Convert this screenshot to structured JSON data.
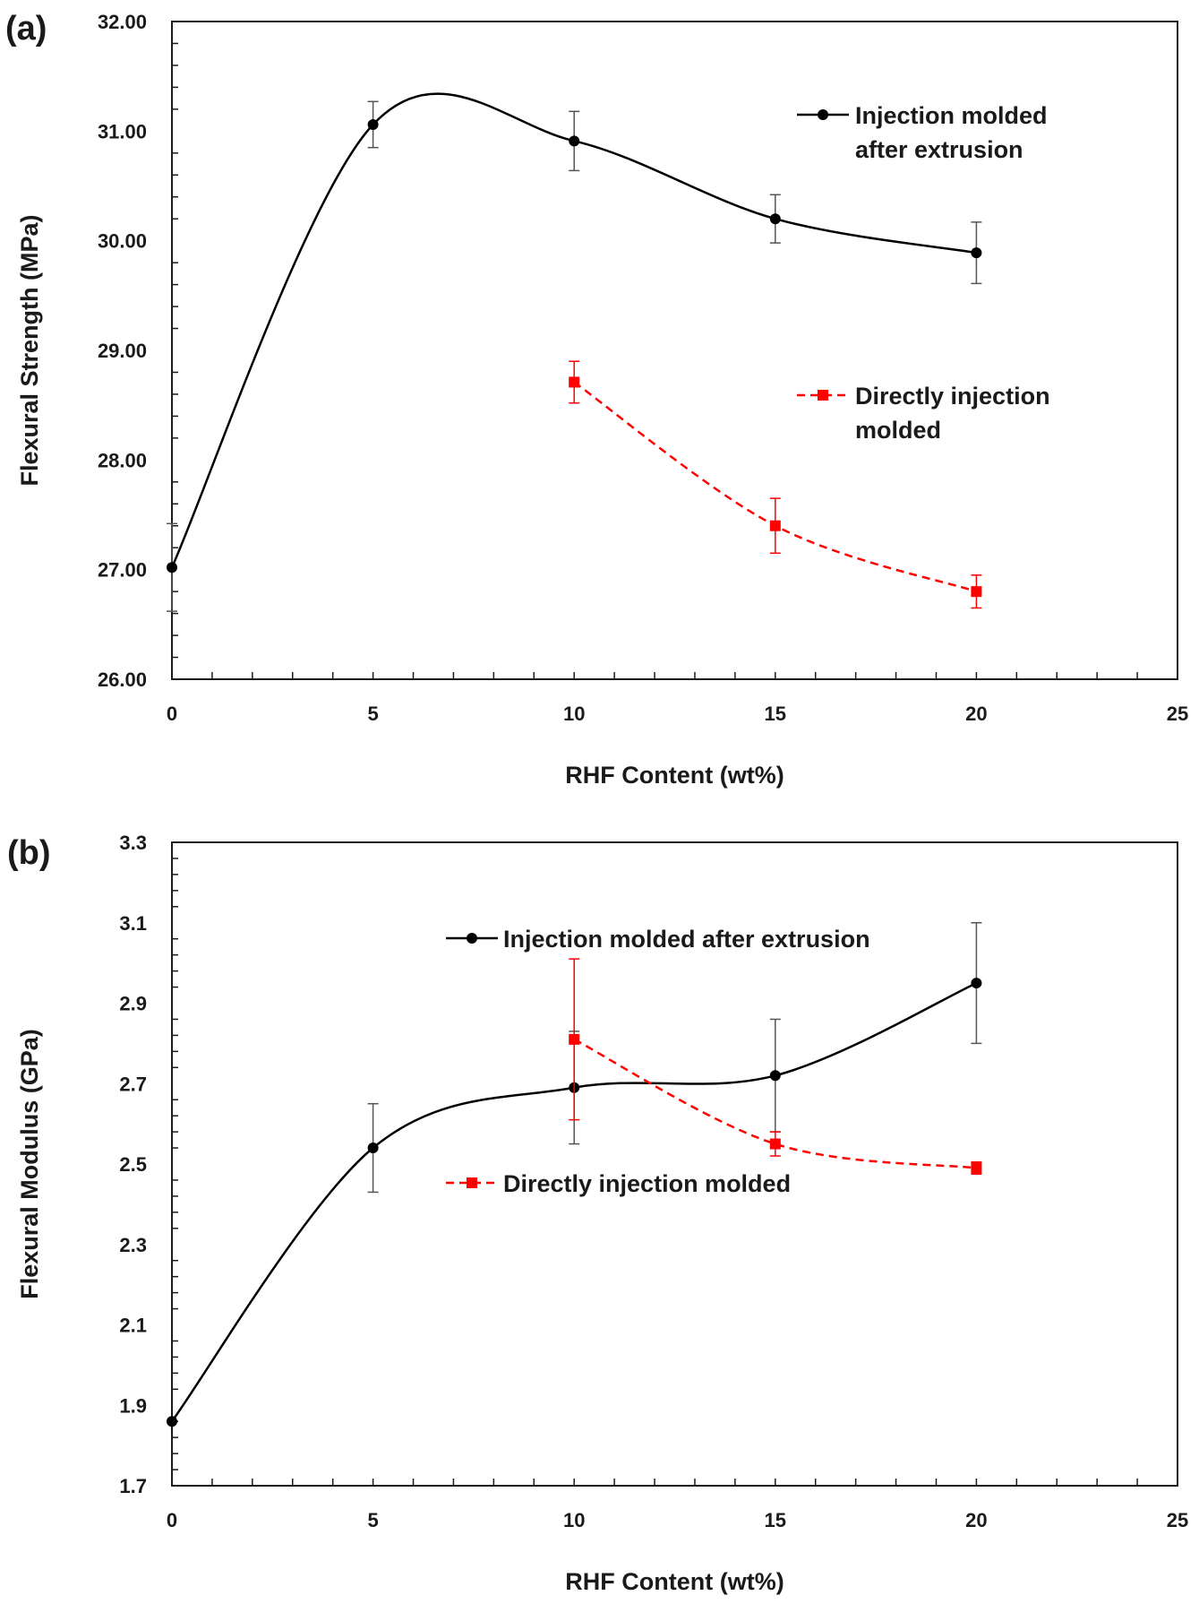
{
  "chart_data": [
    {
      "type": "line",
      "panel_label": "(a)",
      "xlabel": "RHF Content (wt%)",
      "ylabel": "Flexural Strength (MPa)",
      "xlim": [
        0,
        25
      ],
      "ylim": [
        26,
        32
      ],
      "xticks": [
        "0",
        "5",
        "10",
        "15",
        "20",
        "25"
      ],
      "yticks": [
        "26.00",
        "27.00",
        "28.00",
        "29.00",
        "30.00",
        "31.00",
        "32.00"
      ],
      "grid": false,
      "series": [
        {
          "name_lines": [
            "Injection molded",
            "after extrusion"
          ],
          "color": "#000000",
          "marker": "circle",
          "dash": "solid",
          "x": [
            0,
            5,
            10,
            15,
            20
          ],
          "y": [
            27.02,
            31.06,
            30.91,
            30.2,
            29.89
          ],
          "err": [
            0.4,
            0.21,
            0.27,
            0.22,
            0.28
          ]
        },
        {
          "name_lines": [
            "Directly injection",
            "molded"
          ],
          "color": "#ff0000",
          "marker": "square",
          "dash": "dashed",
          "x": [
            10,
            15,
            20
          ],
          "y": [
            28.71,
            27.4,
            26.8
          ],
          "err": [
            0.19,
            0.25,
            0.15
          ]
        }
      ]
    },
    {
      "type": "line",
      "panel_label": "(b)",
      "xlabel": "RHF Content (wt%)",
      "ylabel": "Flexural Modulus (GPa)",
      "xlim": [
        0,
        25
      ],
      "ylim": [
        1.7,
        3.3
      ],
      "xticks": [
        "0",
        "5",
        "10",
        "15",
        "20",
        "25"
      ],
      "yticks": [
        "1.7",
        "1.9",
        "2.1",
        "2.3",
        "2.5",
        "2.7",
        "2.9",
        "3.1",
        "3.3"
      ],
      "grid": false,
      "series": [
        {
          "name_lines": [
            "Injection molded after extrusion"
          ],
          "color": "#000000",
          "marker": "circle",
          "dash": "solid",
          "x": [
            0,
            5,
            10,
            15,
            20
          ],
          "y": [
            1.86,
            2.54,
            2.69,
            2.72,
            2.95
          ],
          "err": [
            0,
            0.11,
            0.14,
            0.14,
            0.15
          ]
        },
        {
          "name_lines": [
            "Directly injection molded"
          ],
          "color": "#ff0000",
          "marker": "square",
          "dash": "dashed",
          "x": [
            10,
            15,
            20
          ],
          "y": [
            2.81,
            2.55,
            2.49
          ],
          "err": [
            0.2,
            0.03,
            0.015
          ]
        }
      ]
    }
  ]
}
